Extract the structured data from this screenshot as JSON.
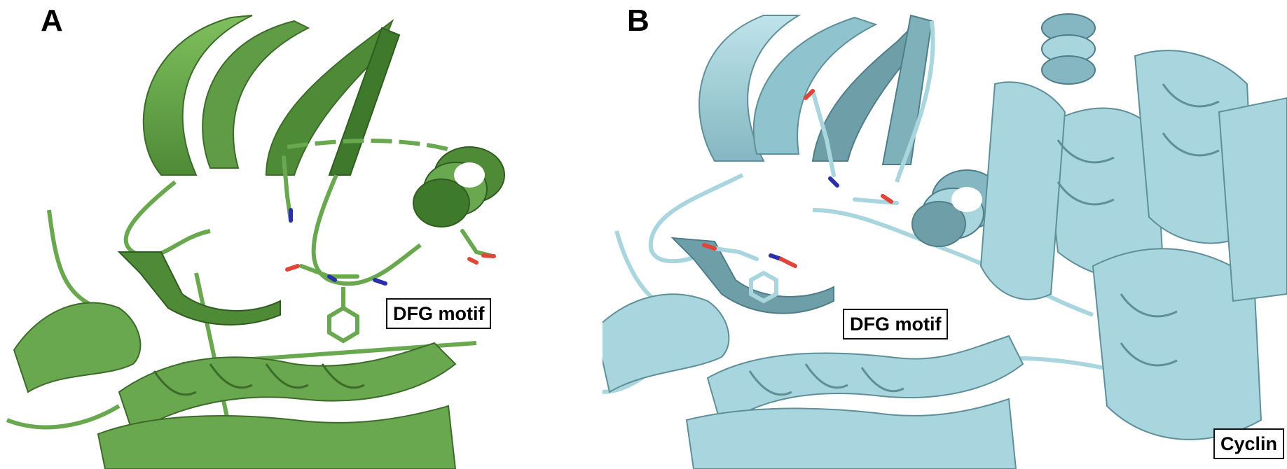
{
  "panels": [
    {
      "letter": "A",
      "structure_color": "#6aa84f",
      "labels": {
        "dfg_motif": "DFG motif"
      }
    },
    {
      "letter": "B",
      "structure_color": "#a9d6de",
      "labels": {
        "dfg_motif": "DFG motif",
        "cyclin": "Cyclin"
      }
    }
  ],
  "colors": {
    "background": "#ffffff",
    "oxygen_atom": "#e0453a",
    "nitrogen_atom": "#2b2fa8"
  }
}
